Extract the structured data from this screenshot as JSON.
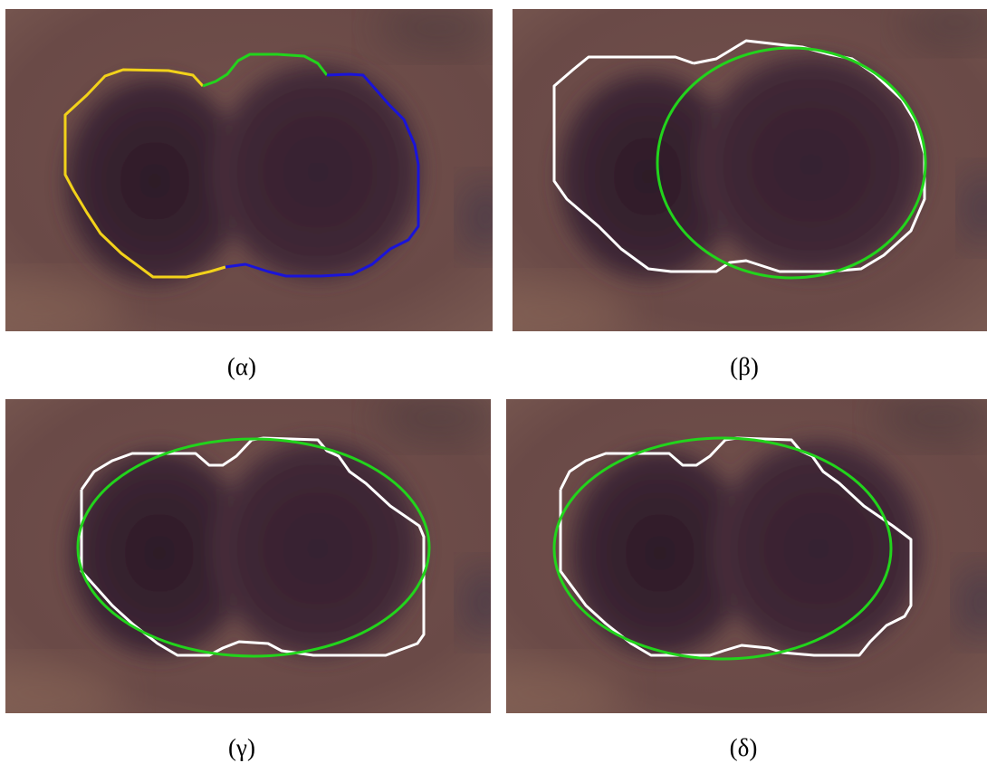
{
  "panels": [
    {
      "id": "a",
      "caption": "(α)",
      "contours": [
        "yellow",
        "green",
        "blue"
      ]
    },
    {
      "id": "b",
      "caption": "(β)",
      "contours": [
        "white",
        "green-ellipse"
      ]
    },
    {
      "id": "c",
      "caption": "(γ)",
      "contours": [
        "white",
        "green-ellipse"
      ]
    },
    {
      "id": "d",
      "caption": "(δ)",
      "contours": [
        "white",
        "green-ellipse"
      ]
    }
  ],
  "colors": {
    "background_base": "#6b4a48",
    "cell_dark": "#3b2431",
    "contour_yellow": "#f2d21a",
    "contour_green": "#22d41c",
    "contour_blue": "#1a14d8",
    "contour_white": "#ffffff",
    "ellipse_green": "#22d41c"
  }
}
